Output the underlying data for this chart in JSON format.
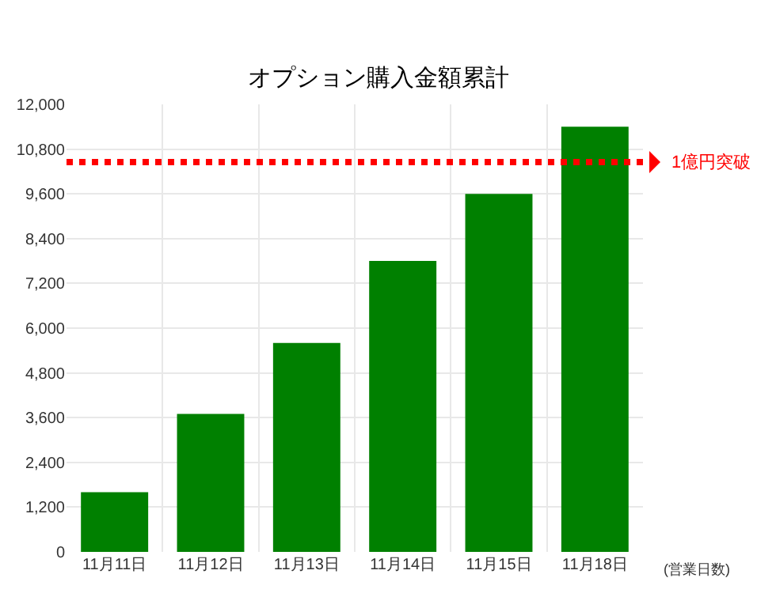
{
  "chart_data": {
    "type": "bar",
    "title": "オプション購入金額累計",
    "xlabel": "(営業日数)",
    "categories": [
      "11月11日",
      "11月12日",
      "11月13日",
      "11月14日",
      "11月15日",
      "11月18日"
    ],
    "values": [
      1600,
      3700,
      5600,
      7800,
      9600,
      11400
    ],
    "color": "#008000",
    "ylim": [
      0,
      12000
    ],
    "yticks": [
      0,
      {
        "value": 1200,
        "label": "1,200"
      },
      {
        "value": 2400,
        "label": "2,400"
      },
      {
        "value": 3600,
        "label": "3,600"
      },
      {
        "value": 4800,
        "label": "4,800"
      },
      {
        "value": 6000,
        "label": "6,000"
      },
      {
        "value": 7200,
        "label": "7,200"
      },
      {
        "value": 8400,
        "label": "8,400"
      },
      {
        "value": 9600,
        "label": "9,600"
      },
      {
        "value": 10800,
        "label": "10,800"
      },
      {
        "value": 12000,
        "label": "12,000"
      }
    ],
    "ref_lines": [
      {
        "axis": "y",
        "value": 10450,
        "label": "1億円突破",
        "color": "#ff0000",
        "line_style": "dotted"
      }
    ],
    "grid": true,
    "legend": false
  }
}
